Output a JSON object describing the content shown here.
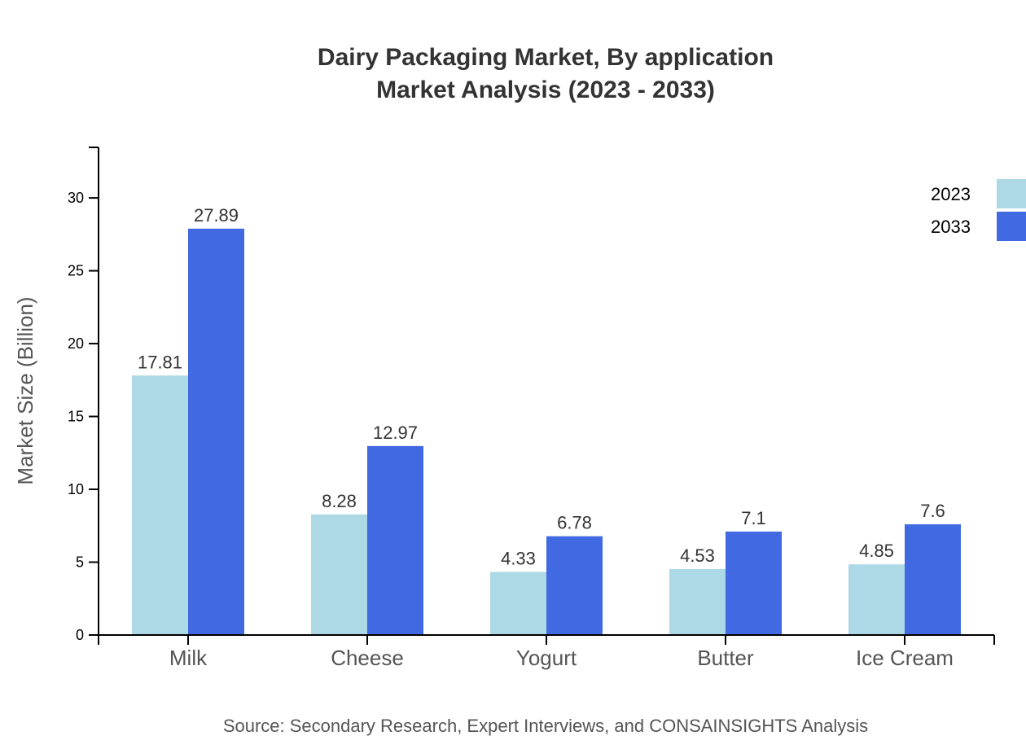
{
  "chart_data": {
    "type": "bar",
    "title": [
      "Dairy Packaging Market, By application",
      "Market Analysis (2023 - 2033)"
    ],
    "xlabel": "",
    "ylabel": "Market Size (Billion)",
    "categories": [
      "Milk",
      "Cheese",
      "Yogurt",
      "Butter",
      "Ice Cream"
    ],
    "series": [
      {
        "name": "2023",
        "color": "#ADD8E6",
        "values": [
          17.81,
          8.28,
          4.33,
          4.53,
          4.85
        ]
      },
      {
        "name": "2033",
        "color": "#4169E1",
        "values": [
          27.89,
          12.97,
          6.78,
          7.1,
          7.6
        ]
      }
    ],
    "ylim": [
      0,
      33.47
    ],
    "yticks": [
      0,
      5,
      10,
      15,
      20,
      25,
      30
    ],
    "grid": false,
    "legend": "top-right",
    "source": "Source: Secondary Research, Expert Interviews, and CONSAINSIGHTS Analysis"
  }
}
